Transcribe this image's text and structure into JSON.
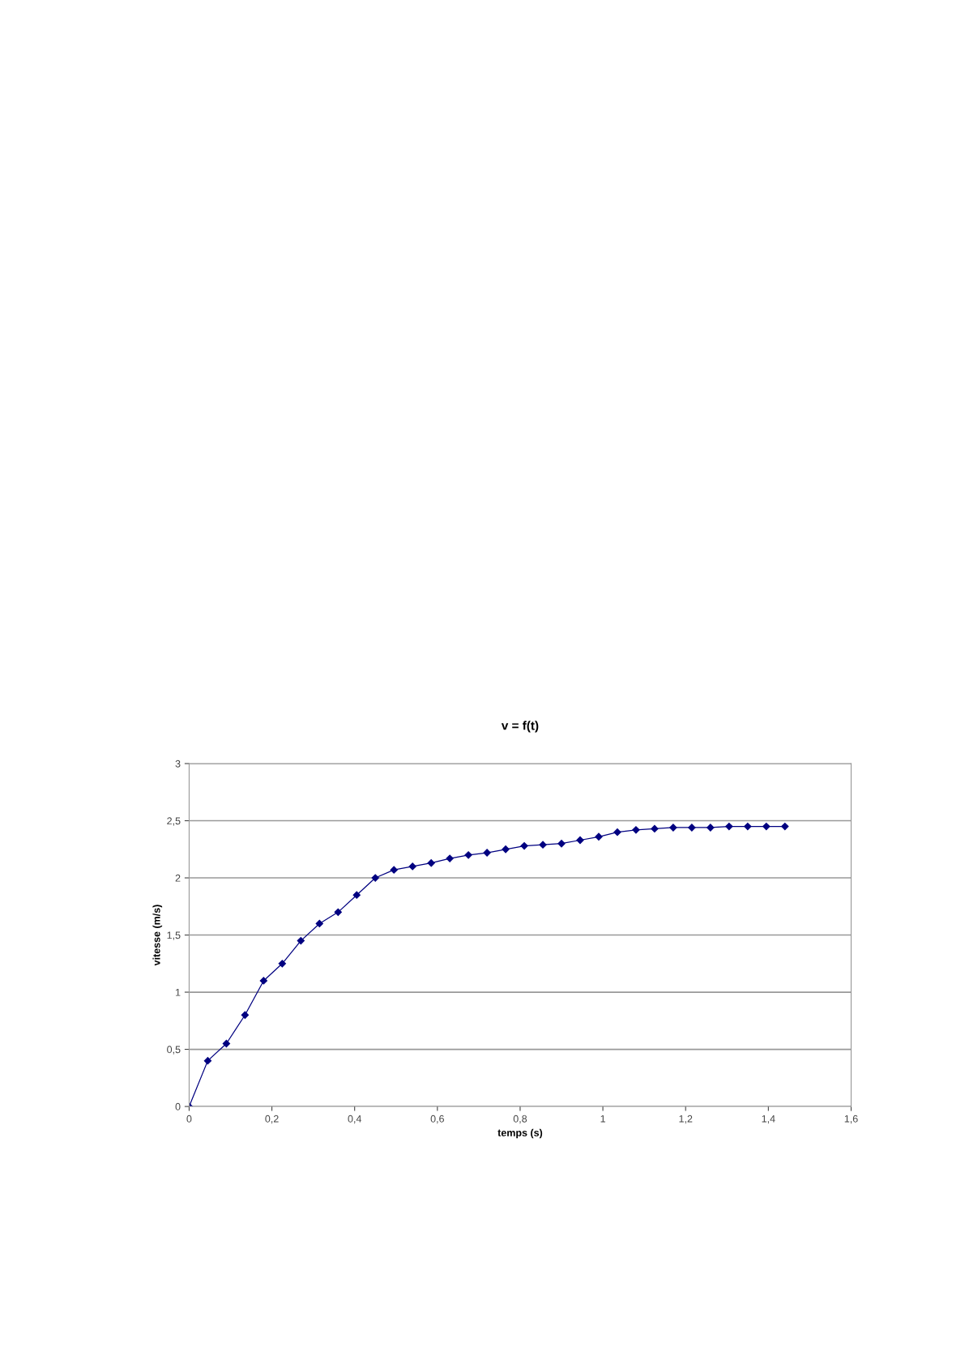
{
  "chart_data": {
    "type": "line",
    "title": "v = f(t)",
    "xlabel": "temps (s)",
    "ylabel": "vitesse (m/s)",
    "x": [
      0,
      0.045,
      0.09,
      0.135,
      0.18,
      0.225,
      0.27,
      0.315,
      0.36,
      0.405,
      0.45,
      0.495,
      0.54,
      0.585,
      0.63,
      0.675,
      0.72,
      0.765,
      0.81,
      0.855,
      0.9,
      0.945,
      0.99,
      1.035,
      1.08,
      1.125,
      1.17,
      1.215,
      1.26,
      1.305,
      1.35,
      1.395,
      1.44
    ],
    "series": [
      {
        "color": "#000080",
        "values": [
          0,
          0.4,
          0.55,
          0.8,
          1.1,
          1.25,
          1.45,
          1.6,
          1.7,
          1.85,
          2.0,
          2.07,
          2.1,
          2.13,
          2.17,
          2.2,
          2.22,
          2.25,
          2.28,
          2.29,
          2.3,
          2.33,
          2.36,
          2.4,
          2.42,
          2.43,
          2.44,
          2.44,
          2.44,
          2.45,
          2.45,
          2.45,
          2.45
        ]
      }
    ],
    "xlim": [
      0,
      1.6
    ],
    "ylim": [
      0,
      3
    ],
    "xticks": [
      0,
      {
        "value": 0.2,
        "label": "0,2"
      },
      {
        "value": 0.4,
        "label": "0,4"
      },
      {
        "value": 0.6,
        "label": "0,6"
      },
      {
        "value": 0.8,
        "label": "0,8"
      },
      1,
      {
        "value": 1.2,
        "label": "1,2"
      },
      {
        "value": 1.4,
        "label": "1,4"
      },
      {
        "value": 1.6,
        "label": "1,6"
      }
    ],
    "yticks": [
      0,
      {
        "value": 0.5,
        "label": "0,5"
      },
      1,
      {
        "value": 1.5,
        "label": "1,5"
      },
      2,
      {
        "value": 2.5,
        "label": "2,5"
      },
      3
    ],
    "grid": "y",
    "marker": "diamond",
    "line_style": "solid",
    "legend": false
  }
}
